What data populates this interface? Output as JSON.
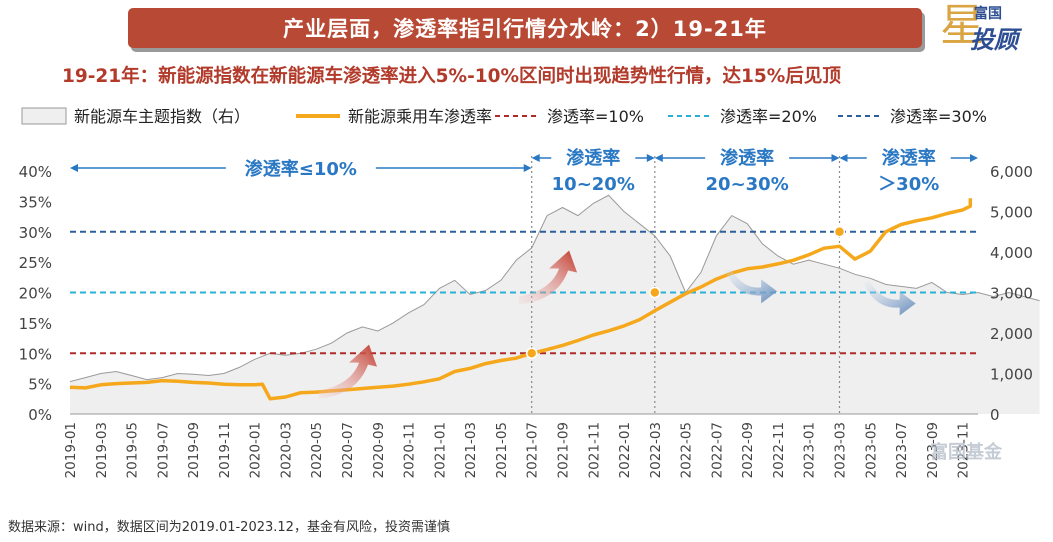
{
  "title": "产业层面，渗透率指引行情分水岭：2）19-21年",
  "subtitle": "19-21年：新能源指数在新能源车渗透率进入5%-10%区间时出现趋势性行情，达15%后见顶",
  "logo": {
    "top": "富国",
    "big": "投顾",
    "star": "星"
  },
  "watermark": "富国基金",
  "source": "数据来源：wind，数据区间为2019.01-2023.12，基金有风险，投资需谨慎",
  "colors": {
    "banner": "#b84a35",
    "orange": "#f5a81b",
    "red": "#b02a2a",
    "cyan": "#2ab0d8",
    "blue": "#2b5f9e",
    "area": "#efefef",
    "areaLine": "#9a9a9a"
  },
  "chart_data": {
    "type": "line",
    "legend": [
      {
        "label": "新能源车主题指数（右）",
        "kind": "area"
      },
      {
        "label": "新能源乘用车渗透率",
        "kind": "line"
      },
      {
        "label": "渗透率=10%",
        "kind": "dash-red"
      },
      {
        "label": "渗透率=20%",
        "kind": "dash-cyan"
      },
      {
        "label": "渗透率=30%",
        "kind": "dash-blue"
      }
    ],
    "y_left": {
      "min": 0,
      "max": 0.4,
      "ticks": [
        "0%",
        "5%",
        "10%",
        "15%",
        "20%",
        "25%",
        "30%",
        "35%",
        "40%"
      ]
    },
    "y_right": {
      "min": 0,
      "max": 6000,
      "ticks": [
        "0",
        "1,000",
        "2,000",
        "3,000",
        "4,000",
        "5,000",
        "6,000"
      ]
    },
    "x_ticks": [
      "2019-01",
      "2019-03",
      "2019-05",
      "2019-07",
      "2019-09",
      "2019-11",
      "2020-01",
      "2020-03",
      "2020-05",
      "2020-07",
      "2020-09",
      "2020-11",
      "2021-01",
      "2021-03",
      "2021-05",
      "2021-07",
      "2021-09",
      "2021-11",
      "2022-01",
      "2022-03",
      "2022-05",
      "2022-07",
      "2022-09",
      "2022-11",
      "2023-01",
      "2023-03",
      "2023-05",
      "2023-07",
      "2023-09",
      "2023-11"
    ],
    "x_start": "2019-01",
    "x_end": "2023-12",
    "reference_lines": [
      0.1,
      0.2,
      0.3
    ],
    "zone_boundaries": [
      "2021-07",
      "2022-03",
      "2023-03"
    ],
    "zones": [
      {
        "label": "渗透率≤10%",
        "from": "2019-01",
        "to": "2021-07"
      },
      {
        "label": "渗透率\n10~20%",
        "from": "2021-07",
        "to": "2022-03"
      },
      {
        "label": "渗透率\n20~30%",
        "from": "2022-03",
        "to": "2023-03"
      },
      {
        "label": "渗透率\n＞30%",
        "from": "2023-03",
        "to": "2023-12"
      }
    ],
    "penetration": [
      {
        "m": 0.0,
        "v": 0.044
      },
      {
        "m": 1.0,
        "v": 0.043
      },
      {
        "m": 2.0,
        "v": 0.048
      },
      {
        "m": 3.0,
        "v": 0.05
      },
      {
        "m": 4.0,
        "v": 0.051
      },
      {
        "m": 5.0,
        "v": 0.052
      },
      {
        "m": 6.0,
        "v": 0.055
      },
      {
        "m": 7.0,
        "v": 0.054
      },
      {
        "m": 8.0,
        "v": 0.052
      },
      {
        "m": 9.0,
        "v": 0.051
      },
      {
        "m": 10.0,
        "v": 0.049
      },
      {
        "m": 11.0,
        "v": 0.048
      },
      {
        "m": 12.0,
        "v": 0.048
      },
      {
        "m": 12.5,
        "v": 0.049
      },
      {
        "m": 13.0,
        "v": 0.025
      },
      {
        "m": 14.0,
        "v": 0.028
      },
      {
        "m": 15.0,
        "v": 0.035
      },
      {
        "m": 16.0,
        "v": 0.036
      },
      {
        "m": 17.0,
        "v": 0.038
      },
      {
        "m": 18.0,
        "v": 0.04
      },
      {
        "m": 19.0,
        "v": 0.042
      },
      {
        "m": 20.0,
        "v": 0.044
      },
      {
        "m": 21.0,
        "v": 0.046
      },
      {
        "m": 22.0,
        "v": 0.049
      },
      {
        "m": 23.0,
        "v": 0.053
      },
      {
        "m": 24.0,
        "v": 0.058
      },
      {
        "m": 25.0,
        "v": 0.07
      },
      {
        "m": 26.0,
        "v": 0.075
      },
      {
        "m": 27.0,
        "v": 0.083
      },
      {
        "m": 28.0,
        "v": 0.088
      },
      {
        "m": 29.0,
        "v": 0.092
      },
      {
        "m": 30.0,
        "v": 0.1
      },
      {
        "m": 31.0,
        "v": 0.106
      },
      {
        "m": 32.0,
        "v": 0.113
      },
      {
        "m": 33.0,
        "v": 0.121
      },
      {
        "m": 34.0,
        "v": 0.13
      },
      {
        "m": 35.0,
        "v": 0.137
      },
      {
        "m": 36.0,
        "v": 0.145
      },
      {
        "m": 37.0,
        "v": 0.155
      },
      {
        "m": 38.0,
        "v": 0.17
      },
      {
        "m": 39.0,
        "v": 0.184
      },
      {
        "m": 40.0,
        "v": 0.198
      },
      {
        "m": 41.0,
        "v": 0.209
      },
      {
        "m": 42.0,
        "v": 0.222
      },
      {
        "m": 43.0,
        "v": 0.232
      },
      {
        "m": 44.0,
        "v": 0.239
      },
      {
        "m": 45.0,
        "v": 0.242
      },
      {
        "m": 46.0,
        "v": 0.247
      },
      {
        "m": 47.0,
        "v": 0.253
      },
      {
        "m": 48.0,
        "v": 0.262
      },
      {
        "m": 49.0,
        "v": 0.273
      },
      {
        "m": 50.0,
        "v": 0.276
      },
      {
        "m": 51.0,
        "v": 0.255
      },
      {
        "m": 52.0,
        "v": 0.268
      },
      {
        "m": 53.0,
        "v": 0.3
      },
      {
        "m": 54.0,
        "v": 0.312
      },
      {
        "m": 55.0,
        "v": 0.318
      },
      {
        "m": 56.0,
        "v": 0.323
      },
      {
        "m": 57.0,
        "v": 0.33
      },
      {
        "m": 58.0,
        "v": 0.336
      },
      {
        "m": 59.0,
        "v": 0.342
      },
      {
        "m": 60.0,
        "v": 0.346
      },
      {
        "m": 61.0,
        "v": 0.35
      },
      {
        "m": 62.0,
        "v": 0.355
      },
      {
        "m": 63.5,
        "v": 0.355
      }
    ],
    "index": [
      {
        "m": 0,
        "v": 800
      },
      {
        "m": 1,
        "v": 900
      },
      {
        "m": 2,
        "v": 1000
      },
      {
        "m": 3,
        "v": 1050
      },
      {
        "m": 4,
        "v": 950
      },
      {
        "m": 5,
        "v": 850
      },
      {
        "m": 6,
        "v": 900
      },
      {
        "m": 7,
        "v": 1000
      },
      {
        "m": 8,
        "v": 980
      },
      {
        "m": 9,
        "v": 950
      },
      {
        "m": 10,
        "v": 1000
      },
      {
        "m": 11,
        "v": 1150
      },
      {
        "m": 12,
        "v": 1350
      },
      {
        "m": 13,
        "v": 1500
      },
      {
        "m": 14,
        "v": 1450
      },
      {
        "m": 15,
        "v": 1500
      },
      {
        "m": 16,
        "v": 1600
      },
      {
        "m": 17,
        "v": 1750
      },
      {
        "m": 18,
        "v": 2000
      },
      {
        "m": 19,
        "v": 2150
      },
      {
        "m": 20,
        "v": 2050
      },
      {
        "m": 21,
        "v": 2250
      },
      {
        "m": 22,
        "v": 2500
      },
      {
        "m": 23,
        "v": 2700
      },
      {
        "m": 24,
        "v": 3100
      },
      {
        "m": 25,
        "v": 3300
      },
      {
        "m": 26,
        "v": 2950
      },
      {
        "m": 27,
        "v": 3050
      },
      {
        "m": 28,
        "v": 3300
      },
      {
        "m": 29,
        "v": 3800
      },
      {
        "m": 30,
        "v": 4100
      },
      {
        "m": 31,
        "v": 4900
      },
      {
        "m": 32,
        "v": 5100
      },
      {
        "m": 33,
        "v": 4900
      },
      {
        "m": 34,
        "v": 5200
      },
      {
        "m": 35,
        "v": 5400
      },
      {
        "m": 36,
        "v": 5000
      },
      {
        "m": 37,
        "v": 4700
      },
      {
        "m": 38,
        "v": 4400
      },
      {
        "m": 39,
        "v": 3900
      },
      {
        "m": 40,
        "v": 3000
      },
      {
        "m": 41,
        "v": 3500
      },
      {
        "m": 42,
        "v": 4400
      },
      {
        "m": 43,
        "v": 4900
      },
      {
        "m": 44,
        "v": 4700
      },
      {
        "m": 45,
        "v": 4200
      },
      {
        "m": 46,
        "v": 3900
      },
      {
        "m": 47,
        "v": 3700
      },
      {
        "m": 48,
        "v": 3800
      },
      {
        "m": 49,
        "v": 3700
      },
      {
        "m": 50,
        "v": 3600
      },
      {
        "m": 51,
        "v": 3450
      },
      {
        "m": 52,
        "v": 3350
      },
      {
        "m": 53,
        "v": 3200
      },
      {
        "m": 54,
        "v": 3150
      },
      {
        "m": 55,
        "v": 3100
      },
      {
        "m": 56,
        "v": 3250
      },
      {
        "m": 57,
        "v": 3000
      },
      {
        "m": 58,
        "v": 2950
      },
      {
        "m": 59,
        "v": 3000
      },
      {
        "m": 60,
        "v": 2900
      },
      {
        "m": 61,
        "v": 3000
      },
      {
        "m": 62,
        "v": 2900
      },
      {
        "m": 63,
        "v": 2800
      }
    ],
    "trend_arrows": [
      {
        "at": "2020-07",
        "direction": "up"
      },
      {
        "at": "2021-08",
        "direction": "up"
      },
      {
        "at": "2022-09",
        "direction": "down"
      },
      {
        "at": "2023-06",
        "direction": "down"
      }
    ]
  }
}
